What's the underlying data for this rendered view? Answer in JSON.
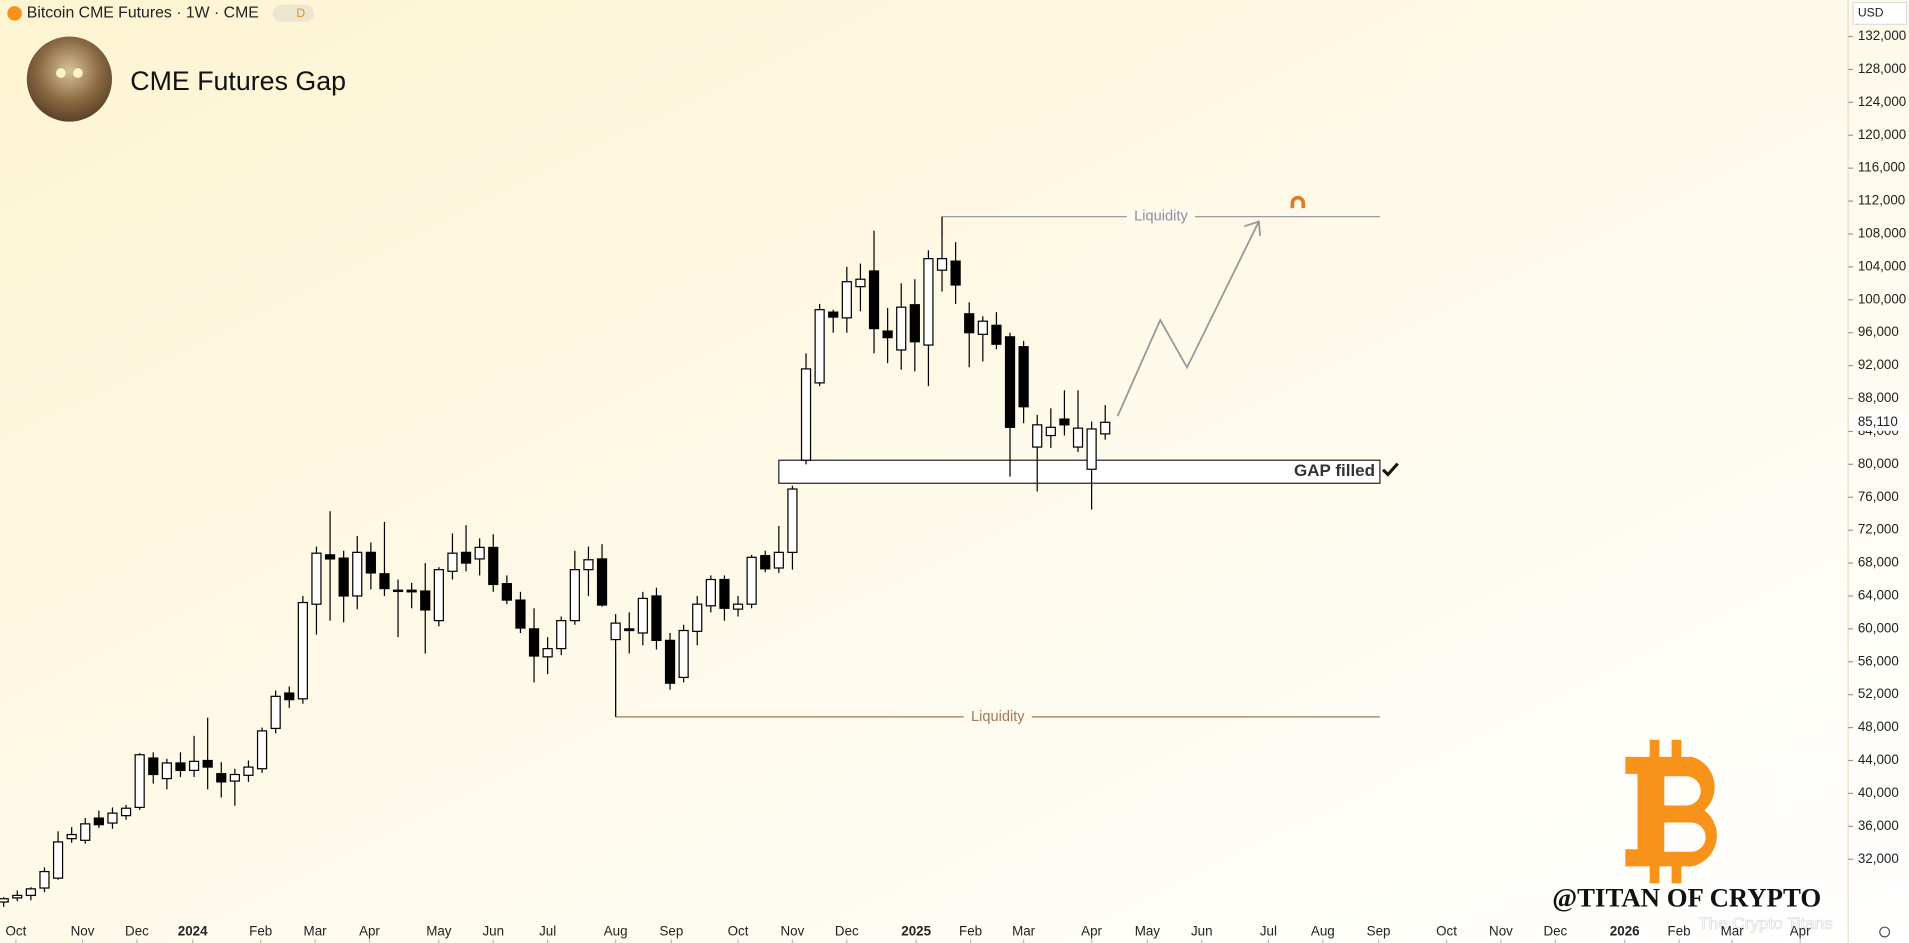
{
  "header": {
    "symbol": "Bitcoin CME Futures · 1W · CME",
    "badge": "D",
    "currency": "USD",
    "watermark": "@TITAN OF CRYPTO",
    "credit": "The Crypto Titans"
  },
  "chart_data": {
    "type": "candlestick",
    "title": "CME Futures Gap",
    "open": [
      26800,
      27300,
      27600,
      28500,
      29700,
      34500,
      34300,
      37000,
      36400,
      37300,
      38300,
      44300,
      41800,
      43700,
      42800,
      44000,
      42400,
      41500,
      42200,
      43000,
      47900,
      52200,
      51500,
      63000,
      69000,
      68600,
      64000,
      69300,
      66700,
      64600,
      64700,
      64600,
      61000,
      67000,
      69300,
      68500,
      69900,
      65500,
      63500,
      60000,
      56600,
      57600,
      61000,
      67200,
      68500,
      58700,
      60000,
      59500,
      64000,
      58600,
      54100,
      59700,
      62800,
      66000,
      62400,
      63000,
      68900,
      67400,
      69300,
      80500,
      89900,
      98500,
      97800,
      101600,
      103500,
      96200,
      93900,
      99400,
      94500,
      103600,
      104700,
      98300,
      95800,
      96900,
      95500,
      94300,
      82100,
      83500,
      85500,
      82100,
      79400,
      83700
    ],
    "high": [
      27400,
      28200,
      28600,
      31000,
      35400,
      35900,
      37000,
      37900,
      38300,
      38600,
      44900,
      45000,
      44200,
      45000,
      47000,
      49200,
      43800,
      43000,
      44000,
      48000,
      52500,
      53000,
      64000,
      70000,
      74300,
      69500,
      71300,
      70500,
      73000,
      66000,
      65600,
      68000,
      67500,
      71600,
      72600,
      71000,
      71500,
      66500,
      64500,
      62500,
      59000,
      61500,
      69500,
      70000,
      70300,
      61800,
      62000,
      64500,
      65000,
      59500,
      60500,
      64000,
      66500,
      66500,
      64000,
      69000,
      69500,
      72500,
      77400,
      93500,
      99500,
      98800,
      104000,
      104400,
      108400,
      99000,
      102000,
      102500,
      106000,
      110100,
      107000,
      99700,
      98000,
      98500,
      96000,
      95000,
      86000,
      86800,
      89000,
      89000,
      85200,
      87200
    ],
    "low": [
      26200,
      26900,
      27000,
      28000,
      29500,
      34000,
      33900,
      35800,
      35700,
      36800,
      38000,
      41200,
      40500,
      42000,
      42000,
      40500,
      39500,
      38500,
      41400,
      42500,
      47300,
      50400,
      50900,
      59300,
      61000,
      60800,
      62400,
      64800,
      64000,
      59000,
      62500,
      57000,
      60300,
      66000,
      67000,
      66500,
      64500,
      63000,
      59500,
      53500,
      54500,
      56800,
      60500,
      64000,
      62700,
      49300,
      57000,
      58000,
      57500,
      52600,
      53500,
      58000,
      62000,
      61000,
      61500,
      62500,
      66900,
      66800,
      67200,
      80000,
      89500,
      96000,
      96000,
      98600,
      93500,
      92300,
      91500,
      91300,
      89500,
      101000,
      99500,
      91800,
      92500,
      94000,
      78500,
      85000,
      76700,
      82000,
      83500,
      81500,
      74500,
      83000
    ],
    "close": [
      27200,
      27600,
      28400,
      30500,
      34100,
      35000,
      36300,
      36200,
      37600,
      38200,
      44700,
      42300,
      43700,
      42800,
      43900,
      43200,
      41400,
      42300,
      43200,
      47600,
      51800,
      51400,
      63200,
      69200,
      68500,
      64000,
      69300,
      66800,
      64900,
      64700,
      64500,
      62300,
      67200,
      69200,
      68000,
      69900,
      65400,
      63500,
      60100,
      56700,
      57600,
      61000,
      67200,
      68400,
      62900,
      60700,
      59800,
      63700,
      58600,
      53400,
      59800,
      63000,
      66000,
      62500,
      63000,
      68700,
      67300,
      69300,
      77000,
      91600,
      98800,
      97900,
      102200,
      102500,
      96500,
      95400,
      99100,
      94900,
      105000,
      105000,
      101800,
      96000,
      97400,
      94600,
      84500,
      87000,
      84800,
      84500,
      84800,
      84400,
      84300,
      85110
    ],
    "price_label": "85,110",
    "annotations": [
      {
        "text": "Liquidity",
        "value": 110100
      },
      {
        "text": "Liquidity",
        "value": 49300
      }
    ],
    "gap": {
      "label": "GAP filled",
      "range": [
        77700,
        80500
      ]
    },
    "ylim": [
      21670,
      136440
    ],
    "yticks": [
      {
        "value": 32000,
        "label": "32,000"
      },
      {
        "value": 36000,
        "label": "36,000"
      },
      {
        "value": 40000,
        "label": "40,000"
      },
      {
        "value": 44000,
        "label": "44,000"
      },
      {
        "value": 48000,
        "label": "48,000"
      },
      {
        "value": 52000,
        "label": "52,000"
      },
      {
        "value": 56000,
        "label": "56,000"
      },
      {
        "value": 60000,
        "label": "60,000"
      },
      {
        "value": 64000,
        "label": "64,000"
      },
      {
        "value": 68000,
        "label": "68,000"
      },
      {
        "value": 72000,
        "label": "72,000"
      },
      {
        "value": 76000,
        "label": "76,000"
      },
      {
        "value": 80000,
        "label": "80,000"
      },
      {
        "value": 84000,
        "label": "84,000"
      },
      {
        "value": 88000,
        "label": "88,000"
      },
      {
        "value": 92000,
        "label": "92,000"
      },
      {
        "value": 96000,
        "label": "96,000"
      },
      {
        "value": 100000,
        "label": "100,000"
      },
      {
        "value": 104000,
        "label": "104,000"
      },
      {
        "value": 108000,
        "label": "108,000"
      },
      {
        "value": 112000,
        "label": "112,000"
      },
      {
        "value": 116000,
        "label": "116,000"
      },
      {
        "value": 120000,
        "label": "120,000"
      },
      {
        "value": 124000,
        "label": "124,000"
      },
      {
        "value": 128000,
        "label": "128,000"
      },
      {
        "value": 132000,
        "label": "132,000"
      }
    ],
    "xlim": [
      -0.27,
      135.36
    ],
    "xticks": [
      {
        "value": 0.9,
        "label": "Oct"
      },
      {
        "value": 5.8,
        "label": "Nov"
      },
      {
        "value": 9.8,
        "label": "Dec"
      },
      {
        "value": 13.9,
        "label": "2024"
      },
      {
        "value": 18.9,
        "label": "Feb"
      },
      {
        "value": 22.9,
        "label": "Mar"
      },
      {
        "value": 26.9,
        "label": "Apr"
      },
      {
        "value": 32.0,
        "label": "May"
      },
      {
        "value": 36.0,
        "label": "Jun"
      },
      {
        "value": 40.0,
        "label": "Jul"
      },
      {
        "value": 45.0,
        "label": "Aug"
      },
      {
        "value": 49.1,
        "label": "Sep"
      },
      {
        "value": 54.0,
        "label": "Oct"
      },
      {
        "value": 58.0,
        "label": "Nov"
      },
      {
        "value": 62.0,
        "label": "Dec"
      },
      {
        "value": 67.1,
        "label": "2025"
      },
      {
        "value": 71.1,
        "label": "Feb"
      },
      {
        "value": 75.0,
        "label": "Mar"
      },
      {
        "value": 80.0,
        "label": "Apr"
      },
      {
        "value": 84.1,
        "label": "May"
      },
      {
        "value": 88.1,
        "label": "Jun"
      },
      {
        "value": 93.0,
        "label": "Jul"
      },
      {
        "value": 97.0,
        "label": "Aug"
      },
      {
        "value": 101.1,
        "label": "Sep"
      },
      {
        "value": 106.1,
        "label": "Oct"
      },
      {
        "value": 110.1,
        "label": "Nov"
      },
      {
        "value": 114.1,
        "label": "Dec"
      },
      {
        "value": 119.2,
        "label": "2026"
      },
      {
        "value": 123.2,
        "label": "Feb"
      },
      {
        "value": 127.1,
        "label": "Mar"
      },
      {
        "value": 132.1,
        "label": "Apr"
      }
    ],
    "up_color": "#ffffff",
    "down_color": "#000000",
    "grid": false
  }
}
